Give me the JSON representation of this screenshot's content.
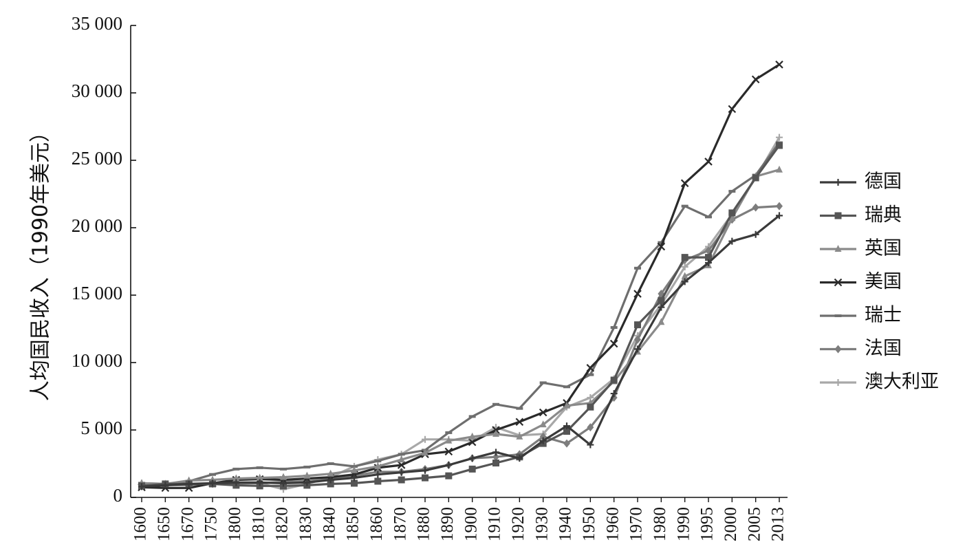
{
  "chart_data": {
    "type": "line",
    "title": "",
    "xlabel": "",
    "ylabel": "人均国民收入（1990年美元）",
    "ylim": [
      0,
      35000
    ],
    "yticks": [
      0,
      5000,
      10000,
      15000,
      20000,
      25000,
      30000,
      35000
    ],
    "ytick_labels": [
      "0",
      "5 000",
      "10 000",
      "15 000",
      "20 000",
      "25 000",
      "30 000",
      "35 000"
    ],
    "categories": [
      "1600",
      "1650",
      "1670",
      "1750",
      "1800",
      "1810",
      "1820",
      "1830",
      "1840",
      "1850",
      "1860",
      "1870",
      "1880",
      "1890",
      "1900",
      "1910",
      "1920",
      "1930",
      "1940",
      "1950",
      "1960",
      "1970",
      "1980",
      "1990",
      "1995",
      "2000",
      "2005",
      "2013"
    ],
    "legend_position": "right",
    "grid": false,
    "series": [
      {
        "name": "德国",
        "color": "#3a3a3a",
        "marker": "plus",
        "values": [
          800,
          900,
          1000,
          1050,
          1100,
          1100,
          1050,
          1100,
          1300,
          1450,
          1700,
          1850,
          2000,
          2400,
          2900,
          3350,
          2900,
          4200,
          5300,
          3900,
          7700,
          11000,
          14100,
          16000,
          17400,
          19000,
          19500,
          20900
        ]
      },
      {
        "name": "瑞典",
        "color": "#555555",
        "marker": "square",
        "values": [
          850,
          1000,
          1000,
          1000,
          900,
          850,
          850,
          900,
          1000,
          1050,
          1200,
          1300,
          1450,
          1600,
          2100,
          2550,
          3000,
          4000,
          4900,
          6700,
          8700,
          12800,
          14600,
          17800,
          17800,
          21100,
          23700,
          26100
        ]
      },
      {
        "name": "英国",
        "color": "#8a8a8a",
        "marker": "triangle",
        "values": [
          1050,
          1000,
          1250,
          1300,
          1400,
          1450,
          1500,
          1600,
          1750,
          2000,
          2300,
          2800,
          3300,
          4200,
          4500,
          4700,
          4500,
          5400,
          6800,
          7000,
          8600,
          10800,
          13000,
          16400,
          17200,
          20700,
          23800,
          24300
        ]
      },
      {
        "name": "美国",
        "color": "#2a2a2a",
        "marker": "x",
        "values": [
          750,
          700,
          700,
          1050,
          1300,
          1350,
          1300,
          1400,
          1500,
          1700,
          2200,
          2400,
          3200,
          3400,
          4100,
          5000,
          5600,
          6300,
          7000,
          9600,
          11400,
          15100,
          18600,
          23300,
          24900,
          28800,
          31000,
          32100
        ]
      },
      {
        "name": "瑞士",
        "color": "#6e6e6e",
        "marker": "dash",
        "values": [
          1050,
          1000,
          1200,
          1700,
          2100,
          2200,
          2100,
          2250,
          2500,
          2300,
          2700,
          3200,
          3500,
          4800,
          6000,
          6900,
          6600,
          8500,
          8200,
          9100,
          12600,
          17000,
          18900,
          21600,
          20800,
          22700,
          23900,
          26300
        ]
      },
      {
        "name": "法国",
        "color": "#7d7d7d",
        "marker": "diamond",
        "values": [
          900,
          950,
          950,
          1000,
          1050,
          1050,
          1150,
          1200,
          1350,
          1600,
          1900,
          1900,
          2100,
          2400,
          2900,
          3000,
          3200,
          4500,
          4000,
          5200,
          7400,
          11700,
          15100,
          17600,
          18300,
          20600,
          21500,
          21600
        ]
      },
      {
        "name": "澳大利亚",
        "color": "#a8a8a8",
        "marker": "plus",
        "values": [
          1050,
          900,
          900,
          1000,
          1050,
          1050,
          600,
          1000,
          1500,
          2300,
          2800,
          3200,
          4300,
          4300,
          4200,
          5200,
          4600,
          4700,
          6700,
          7400,
          8800,
          12000,
          14300,
          17100,
          18600,
          21000,
          23700,
          26700
        ]
      }
    ]
  }
}
